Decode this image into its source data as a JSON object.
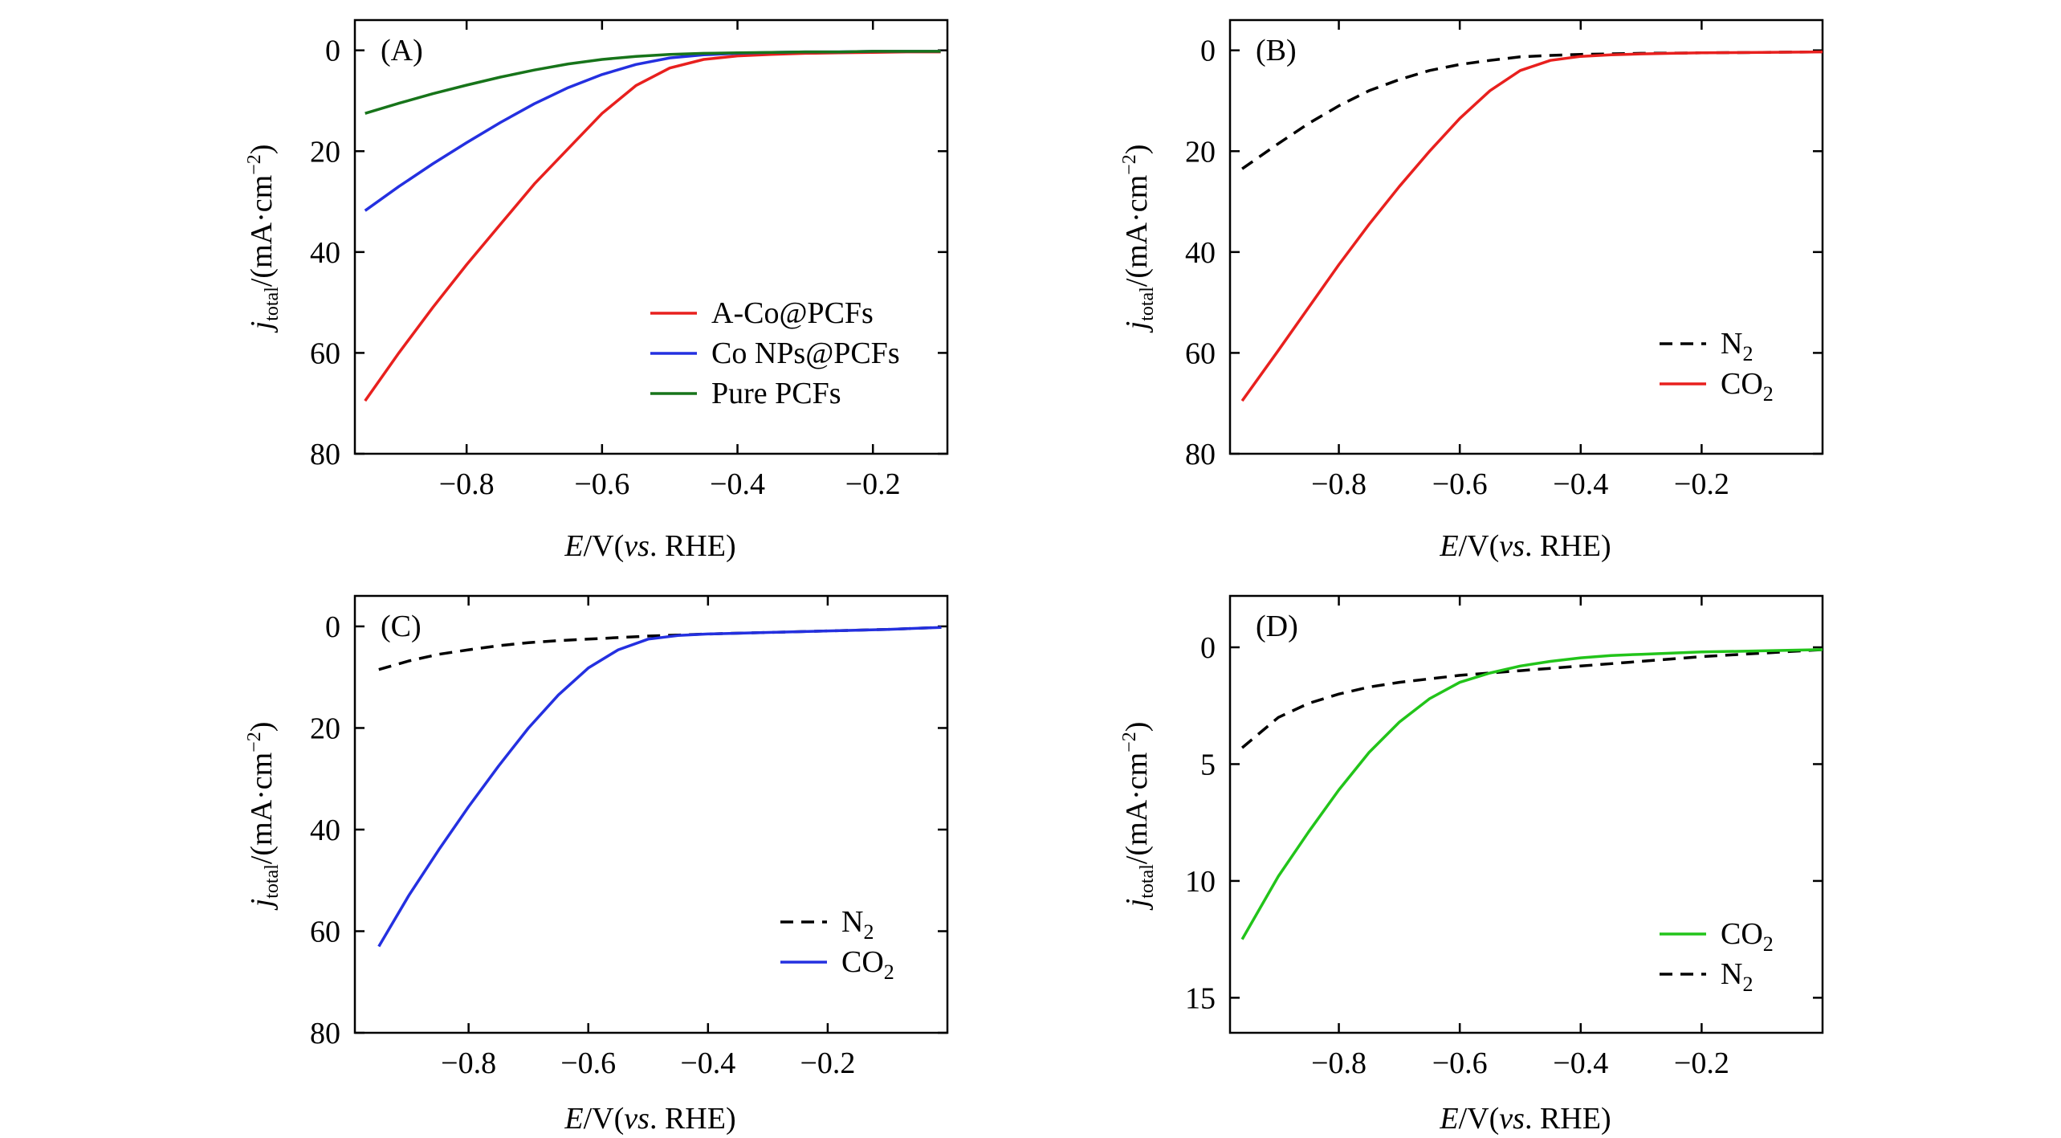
{
  "chart_data": [
    {
      "panel_label": "(A)",
      "type": "line",
      "xlabel": {
        "E": "E",
        "unit": "/V(",
        "vs": "vs",
        "rest": ". RHE)"
      },
      "ylabel": {
        "j": "j",
        "sub": "total",
        "unit": "/(mA·cm",
        "sup": "−2",
        "close": ")"
      },
      "xlim": [
        -0.965,
        -0.09
      ],
      "ylim": [
        80,
        -6
      ],
      "xticks": [
        -0.8,
        -0.6,
        -0.4,
        -0.2
      ],
      "xtick_labels": [
        "−0.8",
        "−0.6",
        "−0.4",
        "−0.2"
      ],
      "yticks": [
        0,
        20,
        40,
        60,
        80
      ],
      "ytick_labels": [
        "0",
        "20",
        "40",
        "60",
        "80"
      ],
      "legend": {
        "placement": "lower-right",
        "order": [
          0,
          1,
          2
        ]
      },
      "series": [
        {
          "name": "A-Co@PCFs",
          "color": "#e8201e",
          "dash": false,
          "x": [
            -0.95,
            -0.9,
            -0.85,
            -0.8,
            -0.75,
            -0.7,
            -0.65,
            -0.6,
            -0.55,
            -0.5,
            -0.45,
            -0.4,
            -0.35,
            -0.3,
            -0.25,
            -0.2,
            -0.15,
            -0.1
          ],
          "y": [
            69.5,
            60,
            51,
            42.5,
            34.5,
            26.5,
            19.5,
            12.5,
            7,
            3.5,
            1.8,
            1.1,
            0.8,
            0.6,
            0.5,
            0.4,
            0.3,
            0.3
          ]
        },
        {
          "name": "Co NPs@PCFs",
          "color": "#2430e0",
          "dash": false,
          "x": [
            -0.95,
            -0.9,
            -0.85,
            -0.8,
            -0.75,
            -0.7,
            -0.65,
            -0.6,
            -0.55,
            -0.5,
            -0.45,
            -0.4,
            -0.35,
            -0.3,
            -0.25,
            -0.2,
            -0.15,
            -0.1
          ],
          "y": [
            31.8,
            27,
            22.5,
            18.3,
            14.3,
            10.6,
            7.4,
            4.8,
            2.8,
            1.5,
            0.9,
            0.6,
            0.4,
            0.3,
            0.3,
            0.2,
            0.2,
            0.2
          ]
        },
        {
          "name": "Pure PCFs",
          "color": "#17741a",
          "dash": false,
          "x": [
            -0.95,
            -0.9,
            -0.85,
            -0.8,
            -0.75,
            -0.7,
            -0.65,
            -0.6,
            -0.55,
            -0.5,
            -0.45,
            -0.4,
            -0.35,
            -0.3,
            -0.25,
            -0.2,
            -0.15,
            -0.1
          ],
          "y": [
            12.5,
            10.5,
            8.6,
            6.9,
            5.3,
            3.9,
            2.7,
            1.8,
            1.2,
            0.8,
            0.6,
            0.5,
            0.4,
            0.3,
            0.3,
            0.2,
            0.2,
            0.2
          ]
        }
      ]
    },
    {
      "panel_label": "(B)",
      "type": "line",
      "xlabel": {
        "E": "E",
        "unit": "/V(",
        "vs": "vs",
        "rest": ". RHE)"
      },
      "ylabel": {
        "j": "j",
        "sub": "total",
        "unit": "/(mA·cm",
        "sup": "−2",
        "close": ")"
      },
      "xlim": [
        -0.98,
        0.0
      ],
      "ylim": [
        80,
        -6
      ],
      "xticks": [
        -0.8,
        -0.6,
        -0.4,
        -0.2
      ],
      "xtick_labels": [
        "−0.8",
        "−0.6",
        "−0.4",
        "−0.2"
      ],
      "yticks": [
        0,
        20,
        40,
        60,
        80
      ],
      "ytick_labels": [
        "0",
        "20",
        "40",
        "60",
        "80"
      ],
      "legend": {
        "placement": "lower-right",
        "order": [
          0,
          1
        ]
      },
      "series": [
        {
          "name_main": "N",
          "name_sub": "2",
          "color": "#000000",
          "dash": true,
          "x": [
            -0.96,
            -0.9,
            -0.85,
            -0.8,
            -0.75,
            -0.7,
            -0.65,
            -0.6,
            -0.55,
            -0.5,
            -0.45,
            -0.4,
            -0.3,
            -0.2,
            -0.1,
            0.0
          ],
          "y": [
            23.5,
            18.5,
            14.5,
            11,
            8,
            5.8,
            4,
            2.8,
            2,
            1.3,
            1,
            0.8,
            0.6,
            0.5,
            0.4,
            0.3
          ]
        },
        {
          "name_main": "CO",
          "name_sub": "2",
          "color": "#e8201e",
          "dash": false,
          "x": [
            -0.96,
            -0.9,
            -0.85,
            -0.8,
            -0.75,
            -0.7,
            -0.65,
            -0.6,
            -0.55,
            -0.5,
            -0.45,
            -0.4,
            -0.35,
            -0.3,
            -0.25,
            -0.2,
            -0.1,
            0.0
          ],
          "y": [
            69.5,
            59.5,
            51,
            42.5,
            34.5,
            27,
            20,
            13.5,
            8,
            4,
            2,
            1.2,
            0.9,
            0.7,
            0.6,
            0.5,
            0.4,
            0.3
          ]
        }
      ]
    },
    {
      "panel_label": "(C)",
      "type": "line",
      "xlabel": {
        "E": "E",
        "unit": "/V(",
        "vs": "vs",
        "rest": ". RHE)"
      },
      "ylabel": {
        "j": "j",
        "sub": "total",
        "unit": "/(mA·cm",
        "sup": "−2",
        "close": ")"
      },
      "xlim": [
        -0.99,
        0.0
      ],
      "ylim": [
        80,
        -6
      ],
      "xticks": [
        -0.8,
        -0.6,
        -0.4,
        -0.2
      ],
      "xtick_labels": [
        "−0.8",
        "−0.6",
        "−0.4",
        "−0.2"
      ],
      "yticks": [
        0,
        20,
        40,
        60,
        80
      ],
      "ytick_labels": [
        "0",
        "20",
        "40",
        "60",
        "80"
      ],
      "legend": {
        "placement": "lower-right",
        "order": [
          0,
          1
        ]
      },
      "series": [
        {
          "name_main": "N",
          "name_sub": "2",
          "color": "#000000",
          "dash": true,
          "x": [
            -0.95,
            -0.9,
            -0.85,
            -0.8,
            -0.75,
            -0.7,
            -0.65,
            -0.6,
            -0.55,
            -0.5,
            -0.45,
            -0.4,
            -0.3,
            -0.2,
            -0.1,
            -0.01
          ],
          "y": [
            8.5,
            6.8,
            5.5,
            4.6,
            3.8,
            3.2,
            2.8,
            2.5,
            2.2,
            1.9,
            1.7,
            1.5,
            1.2,
            0.9,
            0.6,
            0.2
          ]
        },
        {
          "name_main": "CO",
          "name_sub": "2",
          "color": "#2430e0",
          "dash": false,
          "x": [
            -0.95,
            -0.9,
            -0.85,
            -0.8,
            -0.75,
            -0.7,
            -0.65,
            -0.6,
            -0.55,
            -0.5,
            -0.45,
            -0.42,
            -0.4,
            -0.3,
            -0.2,
            -0.1,
            -0.01
          ],
          "y": [
            63,
            53,
            44,
            35.5,
            27.5,
            20,
            13.5,
            8.2,
            4.6,
            2.5,
            1.8,
            1.6,
            1.5,
            1.2,
            0.9,
            0.6,
            0.2
          ]
        }
      ]
    },
    {
      "panel_label": "(D)",
      "type": "line",
      "xlabel": {
        "E": "E",
        "unit": "/V(",
        "vs": "vs",
        "rest": ". RHE)"
      },
      "ylabel": {
        "j": "j",
        "sub": "total",
        "unit": "/(mA·cm",
        "sup": "−2",
        "close": ")"
      },
      "xlim": [
        -0.98,
        0.0
      ],
      "ylim": [
        16.5,
        -2.2
      ],
      "xticks": [
        -0.8,
        -0.6,
        -0.4,
        -0.2
      ],
      "xtick_labels": [
        "−0.8",
        "−0.6",
        "−0.4",
        "−0.2"
      ],
      "yticks": [
        0,
        5,
        10,
        15
      ],
      "ytick_labels": [
        "0",
        "5",
        "10",
        "15"
      ],
      "legend": {
        "placement": "lower-right",
        "order": [
          1,
          0
        ]
      },
      "series": [
        {
          "name_main": "N",
          "name_sub": "2",
          "color": "#000000",
          "dash": true,
          "x": [
            -0.96,
            -0.9,
            -0.85,
            -0.8,
            -0.75,
            -0.7,
            -0.65,
            -0.6,
            -0.55,
            -0.5,
            -0.45,
            -0.4,
            -0.3,
            -0.2,
            -0.1,
            0.0
          ],
          "y": [
            4.3,
            3.0,
            2.4,
            2.0,
            1.7,
            1.5,
            1.35,
            1.2,
            1.1,
            1.0,
            0.9,
            0.8,
            0.6,
            0.4,
            0.25,
            0.1
          ]
        },
        {
          "name_main": "CO",
          "name_sub": "2",
          "color": "#22c41a",
          "dash": false,
          "x": [
            -0.96,
            -0.9,
            -0.85,
            -0.8,
            -0.75,
            -0.7,
            -0.65,
            -0.6,
            -0.55,
            -0.5,
            -0.45,
            -0.4,
            -0.35,
            -0.3,
            -0.2,
            -0.1,
            0.0
          ],
          "y": [
            12.5,
            9.8,
            7.9,
            6.1,
            4.5,
            3.2,
            2.2,
            1.5,
            1.1,
            0.8,
            0.6,
            0.45,
            0.35,
            0.3,
            0.2,
            0.15,
            0.1
          ]
        }
      ]
    }
  ]
}
